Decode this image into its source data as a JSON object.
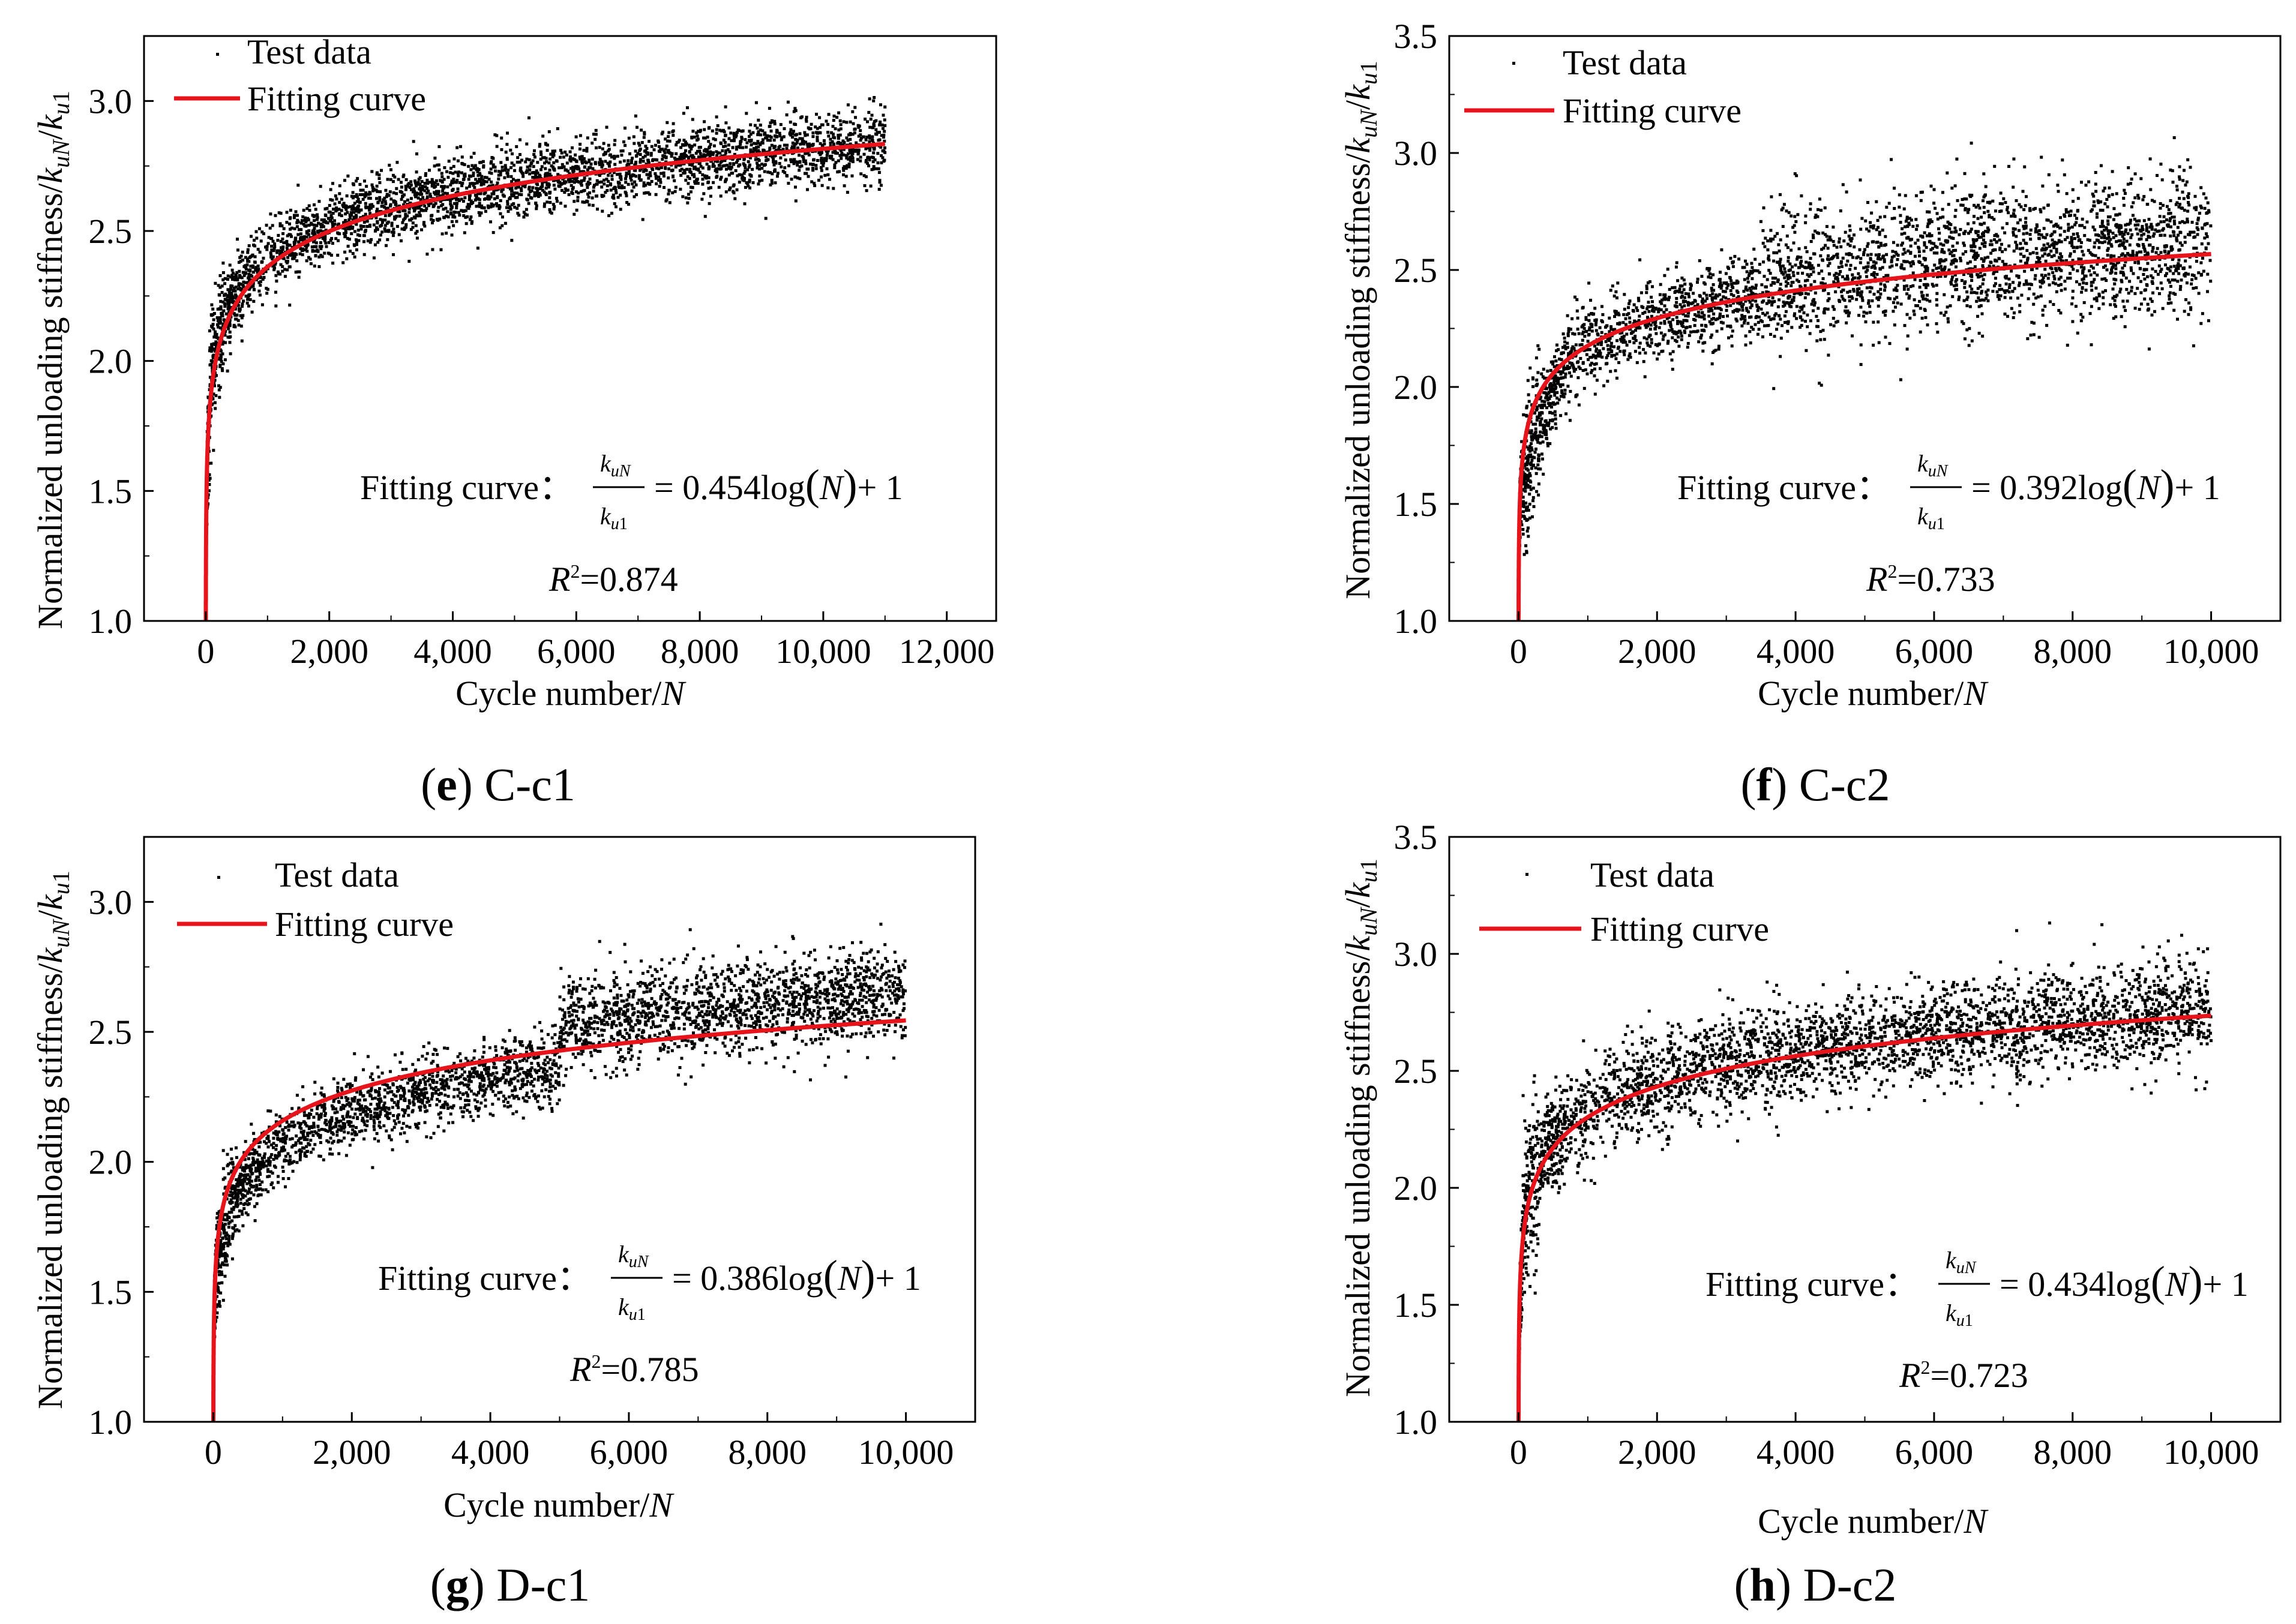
{
  "legend": {
    "test_data": "Test data",
    "fitting_curve": "Fitting curve"
  },
  "panels": [
    {
      "id": "e",
      "caption_letter": "e",
      "caption_name": "C-c1",
      "chart_data": {
        "type": "scatter",
        "title": "",
        "xlabel": "Cycle number/",
        "xlabel_var": "N",
        "ylabel": "Normalized unloading stiffness/",
        "xlim": [
          -1000,
          12800
        ],
        "ylim": [
          1.0,
          3.25
        ],
        "xticks": [
          0,
          2000,
          4000,
          6000,
          8000,
          10000,
          12000
        ],
        "xtick_labels": [
          "0",
          "2,000",
          "4,000",
          "6,000",
          "8,000",
          "10,000",
          "12,000"
        ],
        "yticks": [
          1.0,
          1.5,
          2.0,
          2.5,
          3.0
        ],
        "ytick_labels": [
          "1.0",
          "1.5",
          "2.0",
          "2.5",
          "3.0"
        ],
        "n_max": 11000,
        "fit": {
          "a": 0.454,
          "b": 1
        },
        "formula_label": "Fitting curve：",
        "formula_coef": "= 0.454log",
        "formula_tail": "+ 1",
        "r2_value": "=0.874",
        "series": [
          {
            "name": "Test data",
            "kind": "scatter",
            "color": "#000000"
          },
          {
            "name": "Fitting curve",
            "kind": "line",
            "color": "#e8141b"
          }
        ]
      }
    },
    {
      "id": "f",
      "caption_letter": "f",
      "caption_name": "C-c2",
      "chart_data": {
        "type": "scatter",
        "title": "",
        "xlabel": "Cycle number/",
        "xlabel_var": "N",
        "ylabel": "Normalized unloading stiffness/",
        "xlim": [
          -1000,
          11000
        ],
        "ylim": [
          1.0,
          3.5
        ],
        "xticks": [
          0,
          2000,
          4000,
          6000,
          8000,
          10000
        ],
        "xtick_labels": [
          "0",
          "2,000",
          "4,000",
          "6,000",
          "8,000",
          "10,000"
        ],
        "yticks": [
          1.0,
          1.5,
          2.0,
          2.5,
          3.0,
          3.5
        ],
        "ytick_labels": [
          "1.0",
          "1.5",
          "2.0",
          "2.5",
          "3.0",
          "3.5"
        ],
        "n_max": 10000,
        "fit": {
          "a": 0.392,
          "b": 1
        },
        "formula_label": "Fitting curve：",
        "formula_coef": "= 0.392log",
        "formula_tail": "+ 1",
        "r2_value": "=0.733",
        "series": [
          {
            "name": "Test data",
            "kind": "scatter",
            "color": "#000000"
          },
          {
            "name": "Fitting curve",
            "kind": "line",
            "color": "#e8141b"
          }
        ]
      }
    },
    {
      "id": "g",
      "caption_letter": "g",
      "caption_name": "D-c1",
      "chart_data": {
        "type": "scatter",
        "title": "",
        "xlabel": "Cycle number/",
        "xlabel_var": "N",
        "ylabel": "Normalized unloading stiffness/",
        "xlim": [
          -1000,
          11000
        ],
        "ylim": [
          1.0,
          3.25
        ],
        "xticks": [
          0,
          2000,
          4000,
          6000,
          8000,
          10000
        ],
        "xtick_labels": [
          "0",
          "2,000",
          "4,000",
          "6,000",
          "8,000",
          "10,000"
        ],
        "yticks": [
          1.0,
          1.5,
          2.0,
          2.5,
          3.0
        ],
        "ytick_labels": [
          "1.0",
          "1.5",
          "2.0",
          "2.5",
          "3.0"
        ],
        "n_max": 10000,
        "fit": {
          "a": 0.386,
          "b": 1
        },
        "formula_label": "Fitting curve：",
        "formula_coef": "= 0.386log",
        "formula_tail": "+ 1",
        "r2_value": "=0.785",
        "series": [
          {
            "name": "Test data",
            "kind": "scatter",
            "color": "#000000"
          },
          {
            "name": "Fitting curve",
            "kind": "line",
            "color": "#e8141b"
          }
        ]
      }
    },
    {
      "id": "h",
      "caption_letter": "h",
      "caption_name": "D-c2",
      "chart_data": {
        "type": "scatter",
        "title": "",
        "xlabel": "Cycle number/",
        "xlabel_var": "N",
        "ylabel": "Normalized unloading stiffness/",
        "xlim": [
          -1000,
          11000
        ],
        "ylim": [
          1.0,
          3.5
        ],
        "xticks": [
          0,
          2000,
          4000,
          6000,
          8000,
          10000
        ],
        "xtick_labels": [
          "0",
          "2,000",
          "4,000",
          "6,000",
          "8,000",
          "10,000"
        ],
        "yticks": [
          1.0,
          1.5,
          2.0,
          2.5,
          3.0,
          3.5
        ],
        "ytick_labels": [
          "1.0",
          "1.5",
          "2.0",
          "2.5",
          "3.0",
          "3.5"
        ],
        "n_max": 10000,
        "fit": {
          "a": 0.434,
          "b": 1
        },
        "formula_label": "Fitting curve：",
        "formula_coef": "= 0.434log",
        "formula_tail": "+ 1",
        "r2_value": "=0.723",
        "series": [
          {
            "name": "Test data",
            "kind": "scatter",
            "color": "#000000"
          },
          {
            "name": "Fitting curve",
            "kind": "line",
            "color": "#e8141b"
          }
        ]
      }
    }
  ]
}
